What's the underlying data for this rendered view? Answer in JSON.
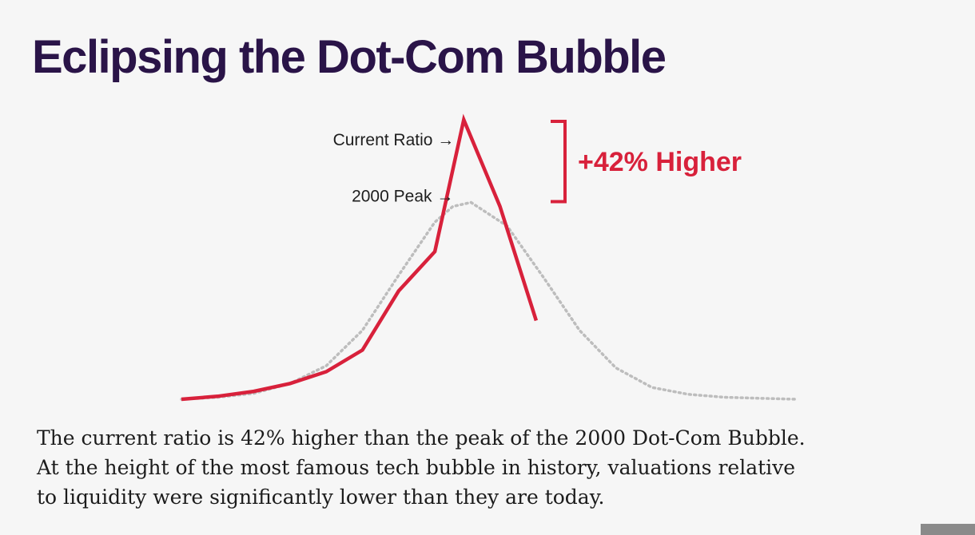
{
  "slide": {
    "title": "Eclipsing the Dot-Com Bubble",
    "caption_lines": [
      "The current ratio is 42% higher than the peak of the 2000 Dot-Com Bubble.",
      "At the height of the most famous tech bubble in history, valuations relative",
      "to liquidity were significantly lower than they are today."
    ]
  },
  "chart_data": {
    "type": "line",
    "title": "",
    "xlabel": "",
    "ylabel": "",
    "x": [
      0,
      1,
      2,
      3,
      4,
      5,
      6,
      7,
      8,
      9,
      10,
      11,
      12,
      13,
      14,
      15,
      16,
      17
    ],
    "xlim": [
      0,
      17
    ],
    "ylim": [
      0,
      142
    ],
    "grid": false,
    "legend": "none",
    "series": [
      {
        "name": "Current Ratio",
        "style": "solid",
        "color": "#d8213b",
        "x": [
          0,
          1,
          2,
          3,
          4,
          5,
          6,
          7,
          7.8,
          8.8,
          9.8
        ],
        "values": [
          0,
          1.5,
          4,
          8,
          14,
          25,
          55,
          75,
          142,
          98,
          40
        ]
      },
      {
        "name": "2000 Peak",
        "style": "dotted",
        "color": "#bdbdbd",
        "x": [
          0,
          1,
          2,
          3,
          4,
          5,
          6,
          7,
          7.5,
          8,
          9,
          10,
          11,
          12,
          13,
          14,
          15,
          16,
          17
        ],
        "values": [
          0,
          1,
          3,
          8,
          17,
          35,
          63,
          90,
          98,
          100,
          88,
          62,
          35,
          16,
          6,
          2.5,
          1,
          0.5,
          0
        ]
      }
    ],
    "annotations": {
      "current_label": "Current Ratio →",
      "peak_label": "2000 Peak →",
      "difference_label": "+42% Higher",
      "difference_pct": 42
    }
  }
}
